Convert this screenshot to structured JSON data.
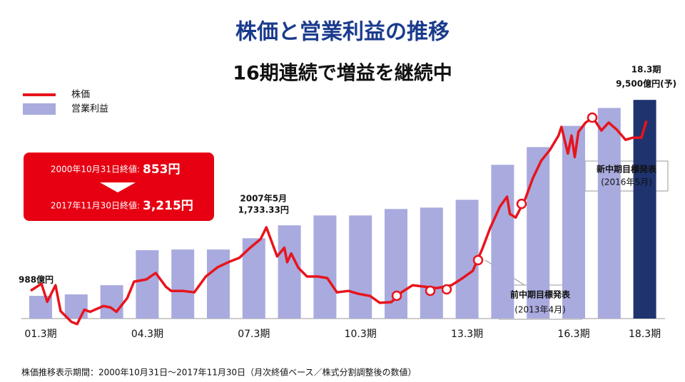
{
  "chart_data": [
    {
      "type": "bar",
      "title": "株価と営業利益の推移",
      "subtitle": "16期連続で増益を継続中",
      "categories": [
        "01.3期",
        null,
        null,
        "04.3期",
        null,
        null,
        "07.3期",
        null,
        null,
        "10.3期",
        null,
        null,
        "13.3期",
        null,
        null,
        "16.3期",
        null,
        "18.3期"
      ],
      "name": "営業利益",
      "values": [
        988,
        1050,
        1450,
        2970,
        3000,
        3000,
        3490,
        4050,
        4480,
        4480,
        4760,
        4820,
        5160,
        6680,
        7450,
        8370,
        9150,
        9500
      ],
      "value_labels": [
        "988億円",
        null,
        null,
        null,
        null,
        null,
        null,
        null,
        null,
        null,
        null,
        null,
        null,
        null,
        null,
        null,
        null,
        "9,500億円(予)"
      ],
      "colors": [
        "#a9aade",
        "#a9aade",
        "#a9aade",
        "#a9aade",
        "#a9aade",
        "#a9aade",
        "#a9aade",
        "#a9aade",
        "#a9aade",
        "#a9aade",
        "#a9aade",
        "#a9aade",
        "#a9aade",
        "#a9aade",
        "#a9aade",
        "#a9aade",
        "#a9aade",
        "#1f336e"
      ],
      "ylim": [
        0,
        10000
      ],
      "annotations": [
        "18.3期"
      ],
      "footnote": "株価推移表示期間：2000年10月31日～2017年11月30日（月次終値ベース／株式分割調整後の数値）"
    },
    {
      "type": "line",
      "name": "株価",
      "color": "#e8141c",
      "axis": "y2",
      "x": [
        2000.83,
        2001.13,
        2001.29,
        2001.52,
        2001.66,
        2001.96,
        2002.12,
        2002.32,
        2002.48,
        2002.85,
        2003.05,
        2003.21,
        2003.51,
        2003.7,
        2004.04,
        2004.3,
        2004.58,
        2004.73,
        2005.05,
        2005.37,
        2005.69,
        2006.02,
        2006.32,
        2006.62,
        2006.92,
        2007.21,
        2007.37,
        2007.67,
        2007.87,
        2007.95,
        2008.06,
        2008.26,
        2008.5,
        2008.8,
        2009.06,
        2009.33,
        2009.65,
        2009.93,
        2010.25,
        2010.52,
        2010.84,
        2011.12,
        2011.43,
        2011.77,
        2012.11,
        2012.51,
        2012.82,
        2013.1,
        2013.36,
        2013.58,
        2013.85,
        2014.05,
        2014.13,
        2014.29,
        2014.55,
        2014.77,
        2015.0,
        2015.24,
        2015.48,
        2015.56,
        2015.74,
        2015.84,
        2015.93,
        2016.03,
        2016.23,
        2016.43,
        2016.67,
        2016.87,
        2017.1,
        2017.34,
        2017.54,
        2017.78,
        2017.92
      ],
      "values": [
        853,
        950,
        700,
        930,
        570,
        420,
        390,
        590,
        560,
        640,
        620,
        560,
        750,
        980,
        1010,
        1100,
        910,
        850,
        850,
        830,
        1050,
        1180,
        1250,
        1310,
        1450,
        1570,
        1733.33,
        1330,
        1450,
        1250,
        1370,
        1170,
        1050,
        1050,
        1030,
        830,
        850,
        810,
        780,
        685,
        695,
        830,
        930,
        910,
        890,
        930,
        1030,
        1130,
        1430,
        1720,
        2020,
        2160,
        1920,
        1870,
        2120,
        2420,
        2660,
        2810,
        3010,
        3130,
        2760,
        3010,
        2710,
        3060,
        3190,
        3260,
        3080,
        3190,
        3090,
        2950,
        2980,
        2980,
        3215
      ],
      "value_labels": {
        "0": "853円",
        "26": "1,733.33円",
        "72": "3,215円"
      },
      "xlim": [
        2000.83,
        2017.92
      ],
      "y2lim": [
        466,
        3665
      ],
      "annotations": [
        "2000年10月31日終値:",
        "2017年11月30日終値:",
        "2007年5月",
        "前中期目標発表",
        "(2013年4月)",
        "新中期目標発表",
        "(2016年5月)"
      ]
    }
  ]
}
